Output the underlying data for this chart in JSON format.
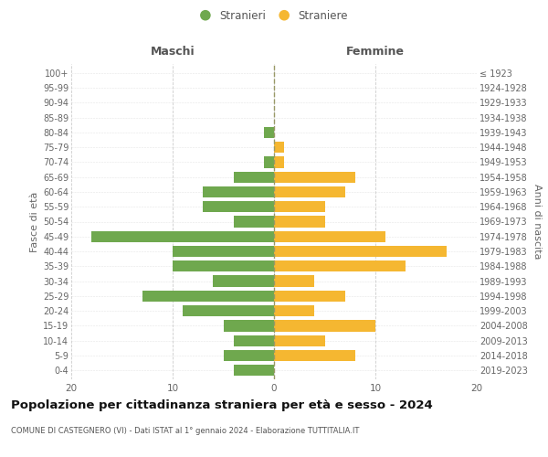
{
  "age_groups": [
    "100+",
    "95-99",
    "90-94",
    "85-89",
    "80-84",
    "75-79",
    "70-74",
    "65-69",
    "60-64",
    "55-59",
    "50-54",
    "45-49",
    "40-44",
    "35-39",
    "30-34",
    "25-29",
    "20-24",
    "15-19",
    "10-14",
    "5-9",
    "0-4"
  ],
  "birth_years": [
    "≤ 1923",
    "1924-1928",
    "1929-1933",
    "1934-1938",
    "1939-1943",
    "1944-1948",
    "1949-1953",
    "1954-1958",
    "1959-1963",
    "1964-1968",
    "1969-1973",
    "1974-1978",
    "1979-1983",
    "1984-1988",
    "1989-1993",
    "1994-1998",
    "1999-2003",
    "2004-2008",
    "2009-2013",
    "2014-2018",
    "2019-2023"
  ],
  "maschi": [
    0,
    0,
    0,
    0,
    1,
    0,
    1,
    4,
    7,
    7,
    4,
    18,
    10,
    10,
    6,
    13,
    9,
    5,
    4,
    5,
    4
  ],
  "femmine": [
    0,
    0,
    0,
    0,
    0,
    1,
    1,
    8,
    7,
    5,
    5,
    11,
    17,
    13,
    4,
    7,
    4,
    10,
    5,
    8,
    0
  ],
  "color_maschi": "#6fa84e",
  "color_femmine": "#f5b731",
  "title": "Popolazione per cittadinanza straniera per età e sesso - 2024",
  "subtitle": "COMUNE DI CASTEGNERO (VI) - Dati ISTAT al 1° gennaio 2024 - Elaborazione TUTTITALIA.IT",
  "header_maschi": "Maschi",
  "header_femmine": "Femmine",
  "ylabel_left": "Fasce di età",
  "ylabel_right": "Anni di nascita",
  "legend_maschi": "Stranieri",
  "legend_femmine": "Straniere",
  "xlim": 20,
  "bg": "#ffffff",
  "grid_color": "#cccccc",
  "title_fontsize": 9.5,
  "subtitle_fontsize": 6.0,
  "bar_height": 0.75
}
